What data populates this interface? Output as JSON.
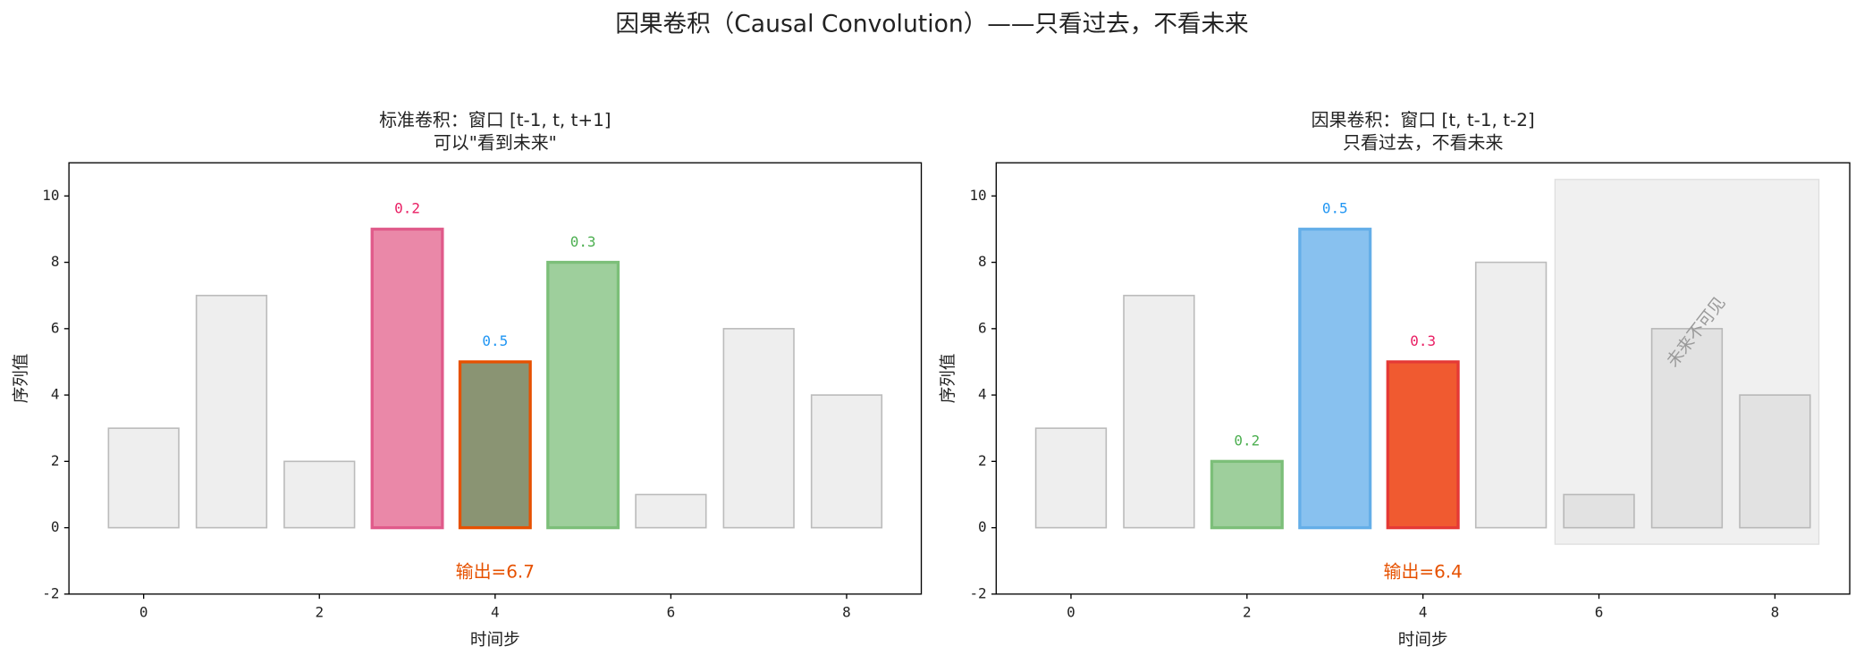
{
  "title": "因果卷积（Causal Convolution）——只看过去，不看未来",
  "chart_data": [
    {
      "type": "bar",
      "title": [
        "标准卷积：窗口 [t-1, t, t+1]",
        "可以\"看到未来\""
      ],
      "xlabel": "时间步",
      "ylabel": "序列值",
      "x": [
        0,
        1,
        2,
        3,
        4,
        5,
        6,
        7,
        8
      ],
      "values": [
        3,
        7,
        2,
        9,
        5,
        8,
        1,
        6,
        4
      ],
      "colors": [
        "#eeeeee",
        "#eeeeee",
        "#eeeeee",
        "#ea88a8",
        "#8a9473",
        "#9ecf9c",
        "#eeeeee",
        "#eeeeee",
        "#eeeeee"
      ],
      "edge_colors": [
        "#bbbbbb",
        "#bbbbbb",
        "#bbbbbb",
        "#e05a8a",
        "#e65100",
        "#7cbf79",
        "#bbbbbb",
        "#bbbbbb",
        "#bbbbbb"
      ],
      "weights": [
        null,
        null,
        null,
        0.2,
        0.5,
        0.3,
        null,
        null,
        null
      ],
      "weight_colors": [
        null,
        null,
        null,
        "#e91e63",
        "#2196f3",
        "#4caf50",
        null,
        null,
        null
      ],
      "output": "输出=6.7",
      "output_color": "#e65100",
      "xlim": [
        -0.85,
        8.85
      ],
      "ylim": [
        -2,
        11
      ],
      "xticks": [
        0,
        2,
        4,
        6,
        8
      ],
      "yticks": [
        -2,
        0,
        2,
        4,
        6,
        8,
        10
      ],
      "grid": false
    },
    {
      "type": "bar",
      "title": [
        "因果卷积：窗口 [t, t-1, t-2]",
        "只看过去，不看未来"
      ],
      "xlabel": "时间步",
      "ylabel": "序列值",
      "x": [
        0,
        1,
        2,
        3,
        4,
        5,
        6,
        7,
        8
      ],
      "values": [
        3,
        7,
        2,
        9,
        5,
        8,
        1,
        6,
        4
      ],
      "colors": [
        "#eeeeee",
        "#eeeeee",
        "#9ecf9c",
        "#88c1ef",
        "#f05a30",
        "#eeeeee",
        "#eeeeee",
        "#eeeeee",
        "#eeeeee"
      ],
      "edge_colors": [
        "#bbbbbb",
        "#bbbbbb",
        "#7cbf79",
        "#64aee8",
        "#e53935",
        "#bbbbbb",
        "#bbbbbb",
        "#bbbbbb",
        "#bbbbbb"
      ],
      "weights": [
        null,
        null,
        0.2,
        0.5,
        0.3,
        null,
        null,
        null,
        null
      ],
      "weight_colors": [
        null,
        null,
        "#4caf50",
        "#2196f3",
        "#e91e63",
        null,
        null,
        null,
        null
      ],
      "output": "输出=6.4",
      "output_color": "#e65100",
      "shade": {
        "xlim": [
          5.5,
          8.5
        ],
        "ylim": [
          -0.5,
          10.5
        ],
        "label": "未来不可见"
      },
      "xlim": [
        -0.85,
        8.85
      ],
      "ylim": [
        -2,
        11
      ],
      "xticks": [
        0,
        2,
        4,
        6,
        8
      ],
      "yticks": [
        -2,
        0,
        2,
        4,
        6,
        8,
        10
      ],
      "grid": false
    }
  ]
}
